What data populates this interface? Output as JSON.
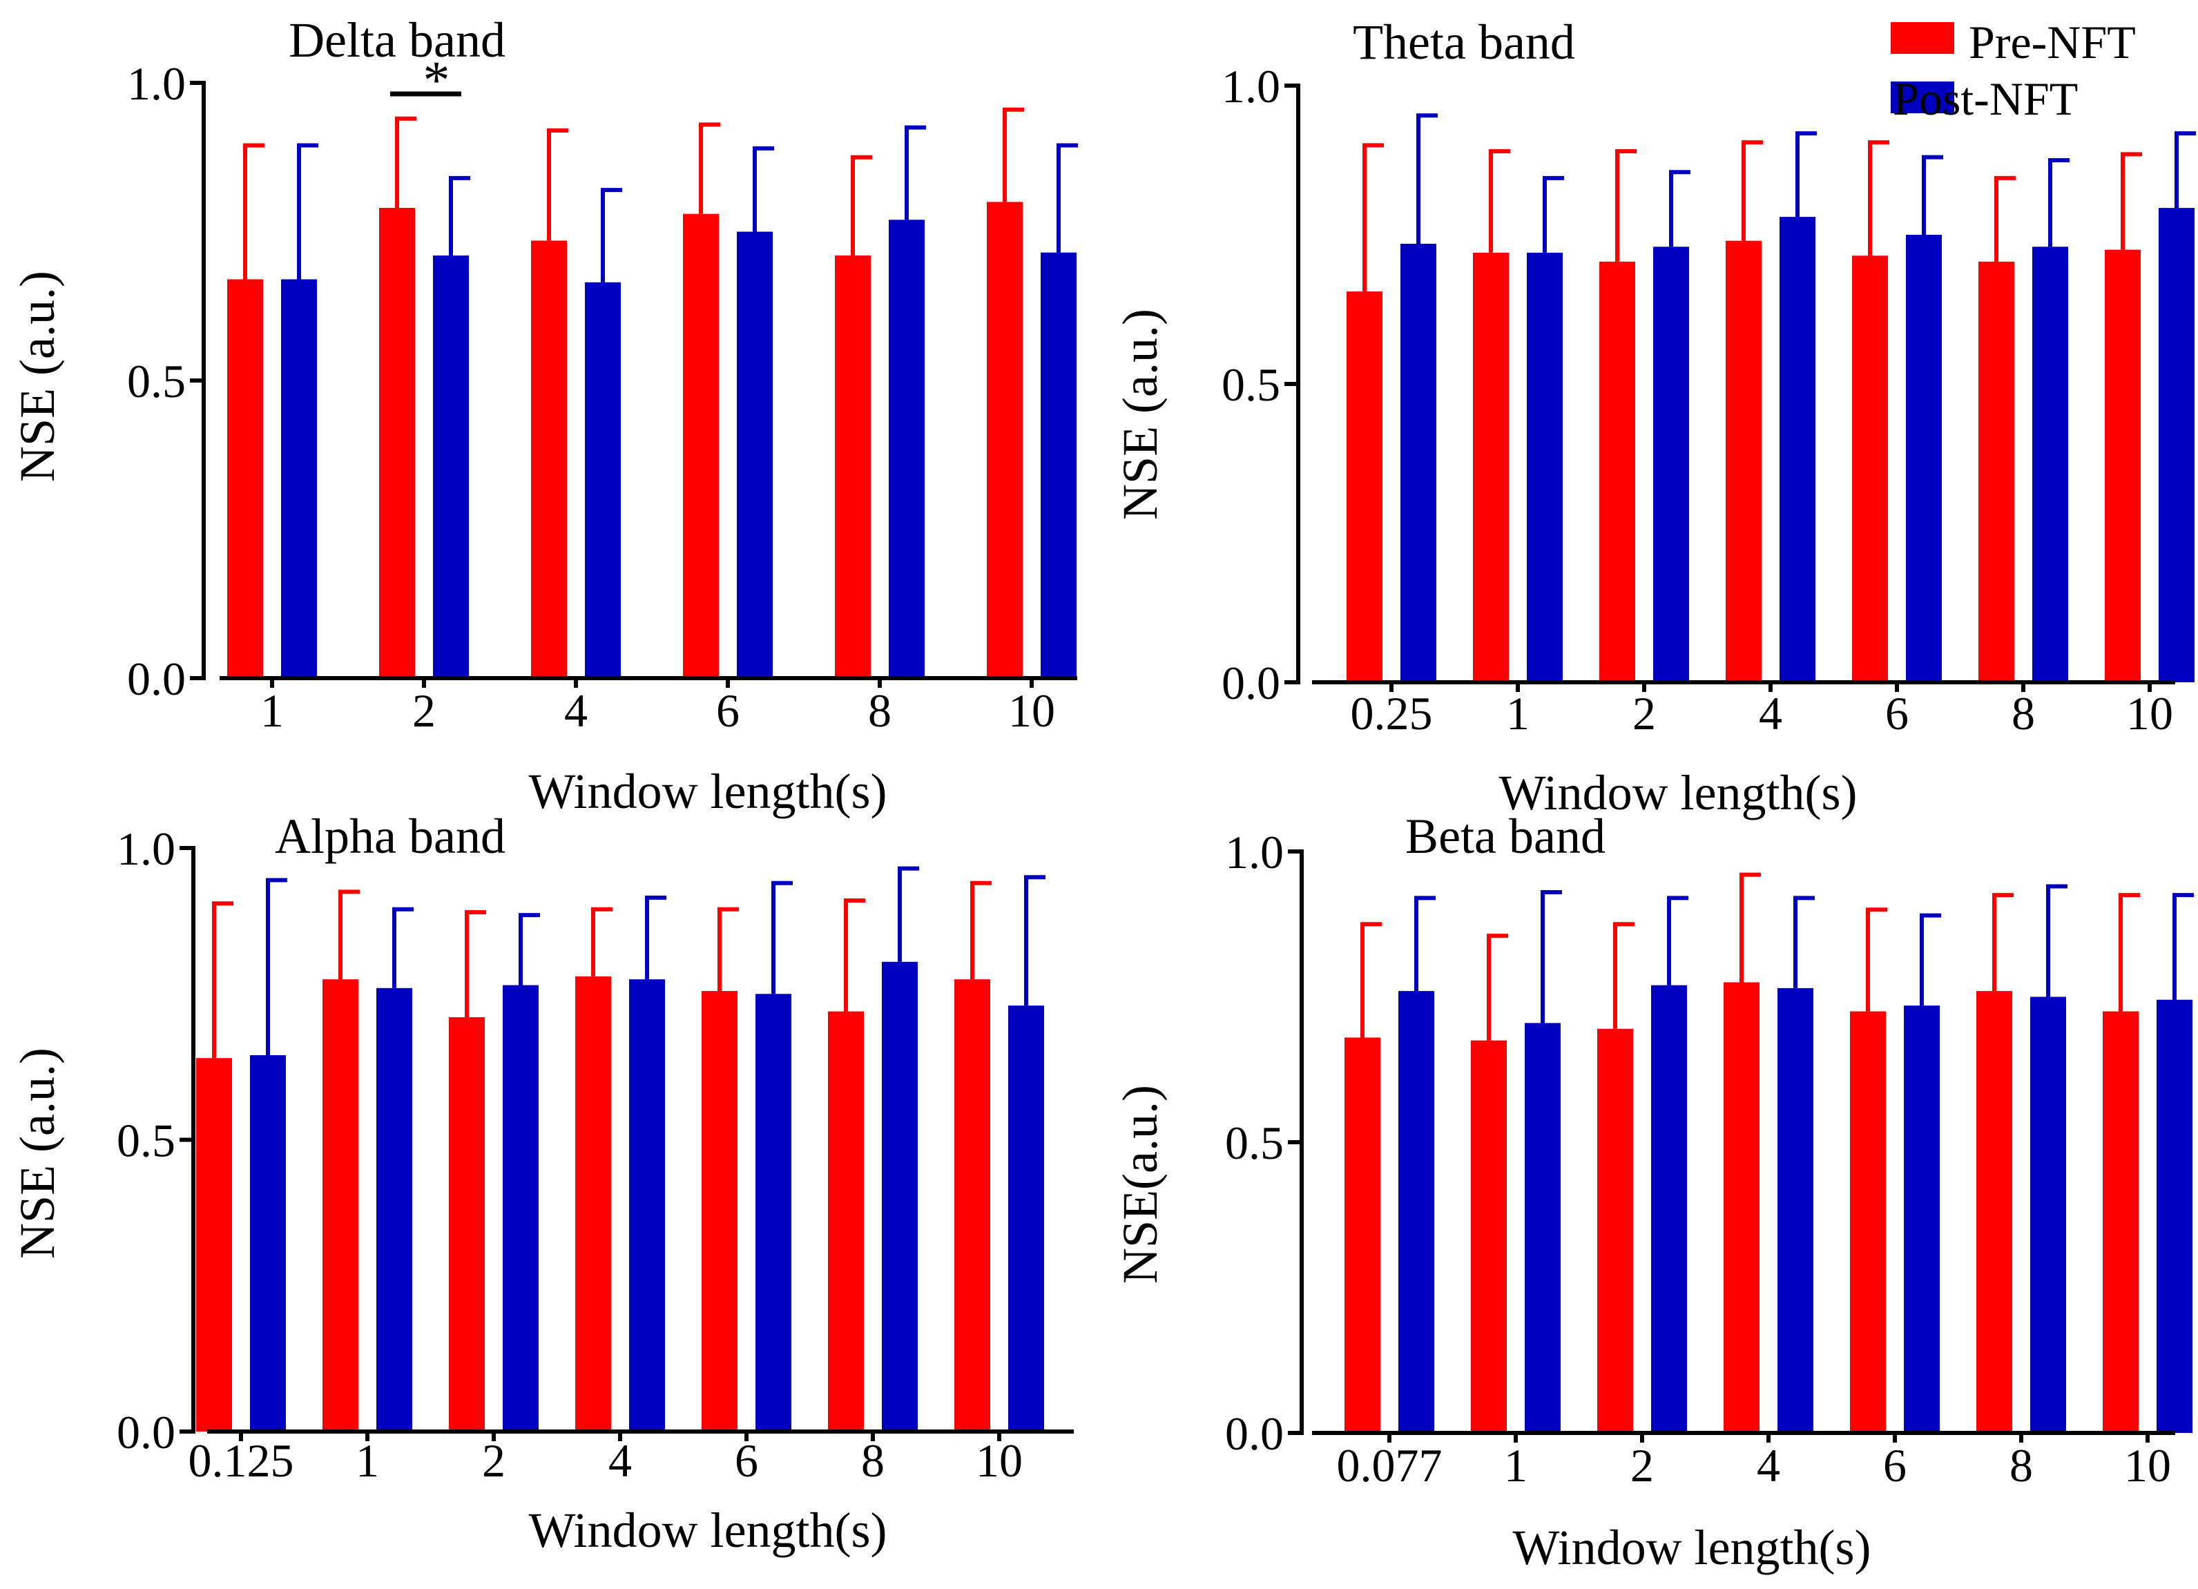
{
  "colors": {
    "pre": "#ff0000",
    "post": "#0000c0",
    "axis": "#000000"
  },
  "legend": {
    "items": [
      {
        "label": "Pre-NFT",
        "color": "#ff0000"
      },
      {
        "label": "Post-NFT",
        "color": "#0000c0"
      }
    ],
    "position": "top-right"
  },
  "chart_data": [
    {
      "type": "bar",
      "title": "Delta band",
      "xlabel": "Window length(s)",
      "ylabel": "NSE (a.u.)",
      "ylim": [
        0,
        1
      ],
      "yticks": [
        "0.0",
        "0.5",
        "1.0"
      ],
      "categories": [
        "1",
        "2",
        "4",
        "6",
        "8",
        "10"
      ],
      "series": [
        {
          "name": "Pre-NFT",
          "values": [
            0.67,
            0.79,
            0.735,
            0.78,
            0.71,
            0.8
          ],
          "errors": [
            0.225,
            0.15,
            0.185,
            0.15,
            0.165,
            0.155
          ]
        },
        {
          "name": "Post-NFT",
          "values": [
            0.67,
            0.71,
            0.665,
            0.75,
            0.77,
            0.715
          ],
          "errors": [
            0.225,
            0.13,
            0.155,
            0.14,
            0.155,
            0.18
          ]
        }
      ],
      "annotations": [
        {
          "text": "*",
          "category": "2"
        }
      ]
    },
    {
      "type": "bar",
      "title": "Theta band",
      "xlabel": "Window length(s)",
      "ylabel": "NSE (a.u.)",
      "ylim": [
        0,
        1
      ],
      "yticks": [
        "0.0",
        "0.5",
        "1.0"
      ],
      "categories": [
        "0.25",
        "1",
        "2",
        "4",
        "6",
        "8",
        "10"
      ],
      "series": [
        {
          "name": "Pre-NFT",
          "values": [
            0.655,
            0.72,
            0.705,
            0.74,
            0.715,
            0.705,
            0.725
          ],
          "errors": [
            0.245,
            0.17,
            0.185,
            0.165,
            0.19,
            0.14,
            0.16
          ]
        },
        {
          "name": "Post-NFT",
          "values": [
            0.735,
            0.72,
            0.73,
            0.78,
            0.75,
            0.73,
            0.795
          ],
          "errors": [
            0.215,
            0.125,
            0.125,
            0.14,
            0.13,
            0.145,
            0.125
          ]
        }
      ],
      "annotations": []
    },
    {
      "type": "bar",
      "title": "Alpha band",
      "xlabel": "Window length(s)",
      "ylabel": "NSE (a.u.)",
      "ylim": [
        0,
        1
      ],
      "yticks": [
        "0.0",
        "0.5",
        "1.0"
      ],
      "categories": [
        "0.125",
        "1",
        "2",
        "4",
        "6",
        "8",
        "10"
      ],
      "series": [
        {
          "name": "Pre-NFT",
          "values": [
            0.64,
            0.775,
            0.71,
            0.78,
            0.755,
            0.72,
            0.775
          ],
          "errors": [
            0.265,
            0.15,
            0.18,
            0.115,
            0.14,
            0.19,
            0.165
          ]
        },
        {
          "name": "Post-NFT",
          "values": [
            0.645,
            0.76,
            0.765,
            0.775,
            0.75,
            0.805,
            0.73
          ],
          "errors": [
            0.3,
            0.135,
            0.12,
            0.14,
            0.19,
            0.16,
            0.22
          ]
        }
      ],
      "annotations": []
    },
    {
      "type": "bar",
      "title": "Beta band",
      "xlabel": "Window length(s)",
      "ylabel": "NSE(a.u.)",
      "ylim": [
        0,
        1
      ],
      "yticks": [
        "0.0",
        "0.5",
        "1.0"
      ],
      "categories": [
        "0.077",
        "1",
        "2",
        "4",
        "6",
        "8",
        "10"
      ],
      "series": [
        {
          "name": "Pre-NFT",
          "values": [
            0.68,
            0.675,
            0.695,
            0.775,
            0.725,
            0.76,
            0.725
          ],
          "errors": [
            0.195,
            0.18,
            0.18,
            0.185,
            0.175,
            0.165,
            0.2
          ]
        },
        {
          "name": "Post-NFT",
          "values": [
            0.76,
            0.705,
            0.77,
            0.765,
            0.735,
            0.75,
            0.745
          ],
          "errors": [
            0.16,
            0.225,
            0.15,
            0.155,
            0.155,
            0.19,
            0.18
          ]
        }
      ],
      "annotations": []
    }
  ]
}
